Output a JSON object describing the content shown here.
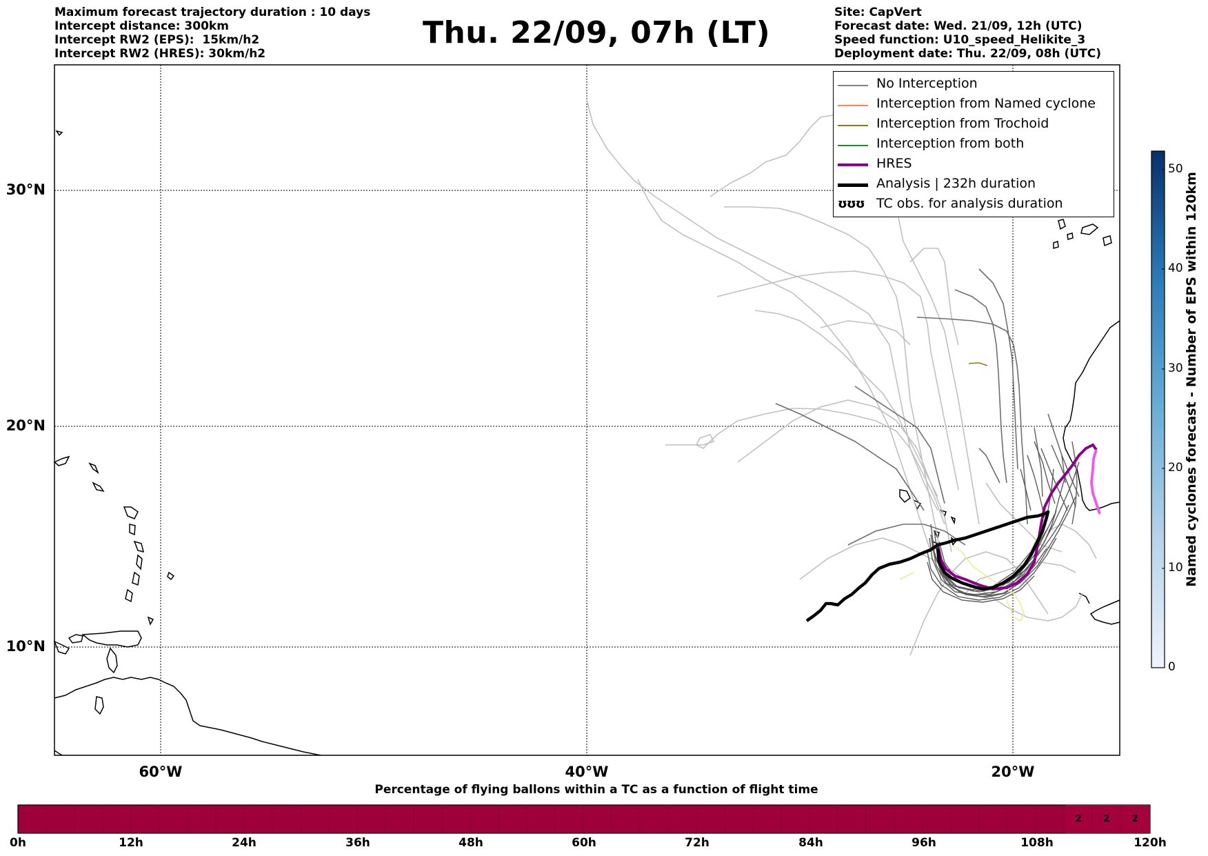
{
  "header": {
    "info_left": [
      "Maximum forecast trajectory duration : 10 days",
      "Intercept distance: 300km",
      "Intercept RW2 (EPS):  15km/h2",
      "Intercept RW2 (HRES): 30km/h2"
    ],
    "title": "Thu. 22/09, 07h (LT)",
    "info_right": [
      "Site: CapVert",
      "Forecast date: Wed. 21/09, 12h (UTC)",
      "Speed function: U10_speed_Helikite_3",
      "Deployment date: Thu. 22/09, 08h (UTC)"
    ]
  },
  "map": {
    "lat_labels": [
      "30°N",
      "20°N",
      "10°N"
    ],
    "lon_labels": [
      "60°W",
      "40°W",
      "20°W"
    ]
  },
  "legend": {
    "items": [
      {
        "label": "No Interception",
        "color": "#808080"
      },
      {
        "label": "Interception from Named cyclone",
        "color": "#ff7f50"
      },
      {
        "label": "Interception from Trochoid",
        "color": "#8b7d10"
      },
      {
        "label": "Interception from both",
        "color": "#228b22"
      },
      {
        "label": "HRES",
        "color": "#8b008b"
      },
      {
        "label": "Analysis | 232h duration",
        "color": "#000000"
      },
      {
        "label": "TC obs. for analysis duration",
        "glyph": "ʊʊʊ"
      }
    ]
  },
  "colorbar": {
    "label": "Named cyclones forecast - Number of EPS within 120km",
    "ticks": [
      "0",
      "10",
      "20",
      "30",
      "40",
      "50"
    ],
    "color_low": "#e6f0fa",
    "color_high": "#08306b"
  },
  "bottom": {
    "title": "Percentage of flying ballons within a TC as a function of flight time",
    "hours": [
      "0h",
      "12h",
      "24h",
      "36h",
      "48h",
      "60h",
      "72h",
      "84h",
      "96h",
      "108h",
      "120h"
    ],
    "bar_color": "#9e003a",
    "pct_values": [
      "2",
      "2",
      "2"
    ]
  }
}
